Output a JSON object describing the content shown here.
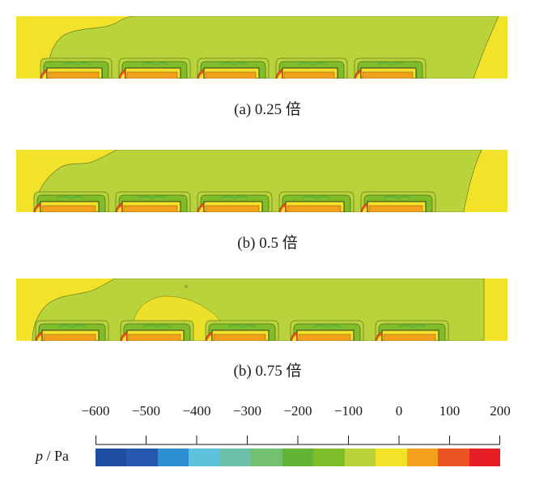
{
  "panels": [
    {
      "caption": "(a)  0.25 倍"
    },
    {
      "caption": "(b)  0.5 倍"
    },
    {
      "caption": "(b)  0.75 倍"
    }
  ],
  "colorbar": {
    "variable": "p",
    "unit": "Pa",
    "ticks": [
      "−600",
      "−500",
      "−400",
      "−300",
      "−200",
      "−100",
      "0",
      "100",
      "200"
    ],
    "colors": [
      "#1f4ea3",
      "#2559b0",
      "#2e8fd3",
      "#5cc2dd",
      "#6cc0a8",
      "#72c070",
      "#62b437",
      "#7fbe2a",
      "#b9d43a",
      "#f2e22a",
      "#f3a11d",
      "#ea5420",
      "#e61e25"
    ]
  },
  "field_colors": {
    "background": "#f2e22a",
    "mid": "#b9d43a",
    "low": "#7fbe2a",
    "lower": "#62b437",
    "high": "#f3a11d",
    "peak": "#ea5420"
  }
}
